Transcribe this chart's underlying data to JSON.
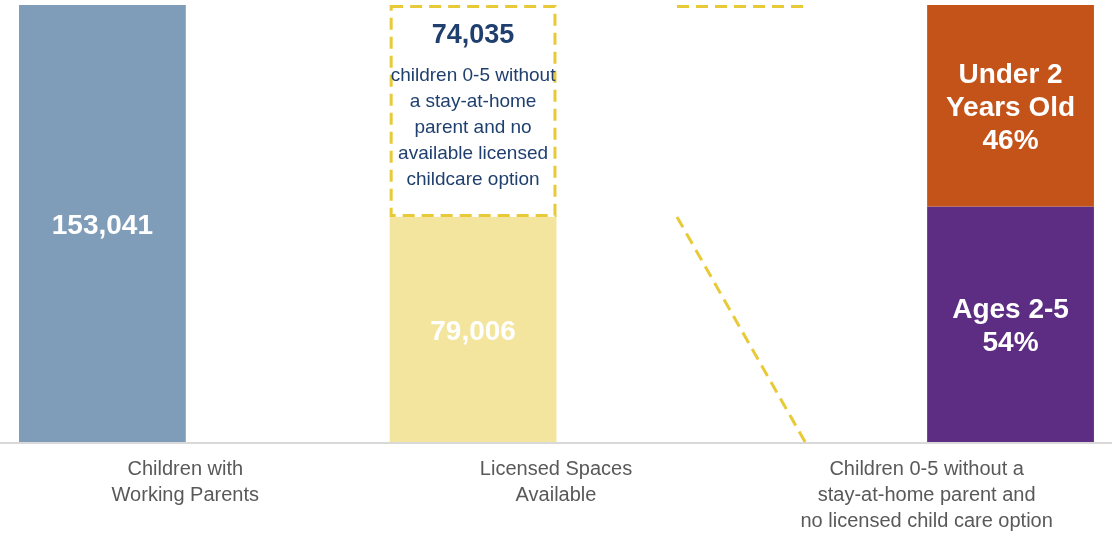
{
  "chart_data": {
    "type": "bar",
    "stacked": true,
    "categories": [
      "Children with\nWorking Parents",
      "Licensed Spaces\nAvailable",
      "Children 0-5 without a\nstay-at-home parent and\nno licensed child care option"
    ],
    "ylim": [
      0,
      153041
    ],
    "y2lim": [
      0,
      100
    ],
    "series": [
      {
        "colors": [
          "#7f9db9",
          "#f3e59e",
          null
        ],
        "values": [
          153041,
          79006,
          null
        ],
        "value_labels": [
          "153,041",
          "79,006",
          null
        ]
      },
      {
        "color": "#e8c937",
        "line_style": "dashed",
        "values": [
          null,
          74035,
          null
        ],
        "value_labels": [
          null,
          "74,035",
          null
        ]
      },
      {
        "name": "Ages 2-5",
        "color": "#5c2d82",
        "axis": "y2",
        "values": [
          null,
          null,
          54
        ],
        "value_labels": [
          null,
          null,
          "54%"
        ]
      },
      {
        "name": "Under 2\nYears Old",
        "color": "#c4531a",
        "axis": "y2",
        "values": [
          null,
          null,
          46
        ],
        "value_labels": [
          null,
          null,
          "46%"
        ]
      }
    ],
    "annotations": [
      "children 0-5 without\na stay-at-home\nparent and no\navailable licensed\nchildcare option"
    ]
  }
}
